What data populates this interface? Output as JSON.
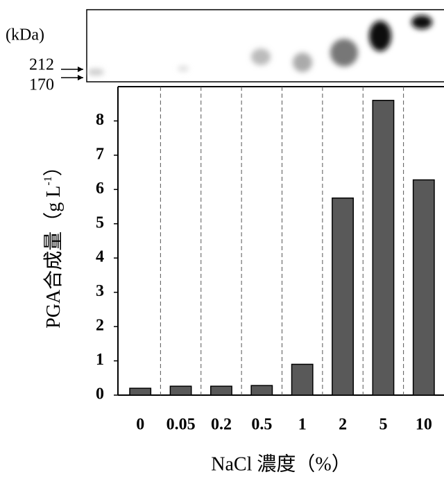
{
  "chart_data": {
    "type": "bar",
    "gel_unit": "(kDa)",
    "gel_markers": [
      "212",
      "170"
    ],
    "y_label": "PGA合成量（g L",
    "y_label_sup": "-1",
    "y_label_end": "）",
    "x_label": "NaCl 濃度（%）",
    "categories": [
      "0",
      "0.05",
      "0.2",
      "0.5",
      "1",
      "2",
      "5",
      "10"
    ],
    "values": [
      0.2,
      0.26,
      0.26,
      0.28,
      0.9,
      5.75,
      8.6,
      6.28
    ],
    "color": "#595959",
    "ylim": [
      0,
      9
    ],
    "yticks": [
      0,
      1,
      2,
      3,
      4,
      5,
      6,
      7,
      8
    ]
  }
}
